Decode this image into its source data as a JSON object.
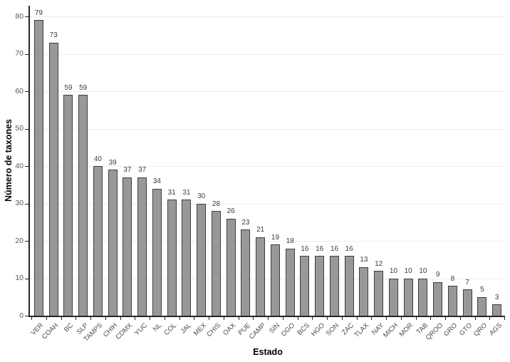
{
  "chart_data": {
    "type": "bar",
    "title": "",
    "xlabel": "Estado",
    "ylabel": "Número de taxones",
    "categories": [
      "VER",
      "COAH",
      "BC",
      "SLP",
      "TAMPS",
      "CHIH",
      "CDMX",
      "YUC",
      "NL",
      "COL",
      "JAL",
      "MEX",
      "CHIS",
      "OAX",
      "PUE",
      "CAMP",
      "SIN",
      "DGO",
      "BCS",
      "HGO",
      "SON",
      "ZAC",
      "TLAX",
      "NAY",
      "MICH",
      "MOR",
      "TAB",
      "QROO",
      "GRO",
      "GTO",
      "QRO",
      "AGS"
    ],
    "values": [
      79,
      73,
      59,
      59,
      40,
      39,
      37,
      37,
      34,
      31,
      31,
      30,
      28,
      26,
      23,
      21,
      19,
      18,
      16,
      16,
      16,
      16,
      13,
      12,
      10,
      10,
      10,
      9,
      8,
      7,
      5,
      3
    ],
    "yticks": [
      0,
      10,
      20,
      30,
      40,
      50,
      60,
      70,
      80
    ],
    "ylim": [
      0,
      80
    ],
    "grid": "horizontal",
    "legend": "none",
    "data_labels": true,
    "colors": {
      "bar_fill": "#989898",
      "bar_border": "#3f3f3f",
      "gridline": "#ececec",
      "axis_line": "#262626",
      "tick_label": "#595959",
      "data_label": "#3d3d3d",
      "axis_title": "#000000",
      "background": "#ffffff"
    }
  }
}
